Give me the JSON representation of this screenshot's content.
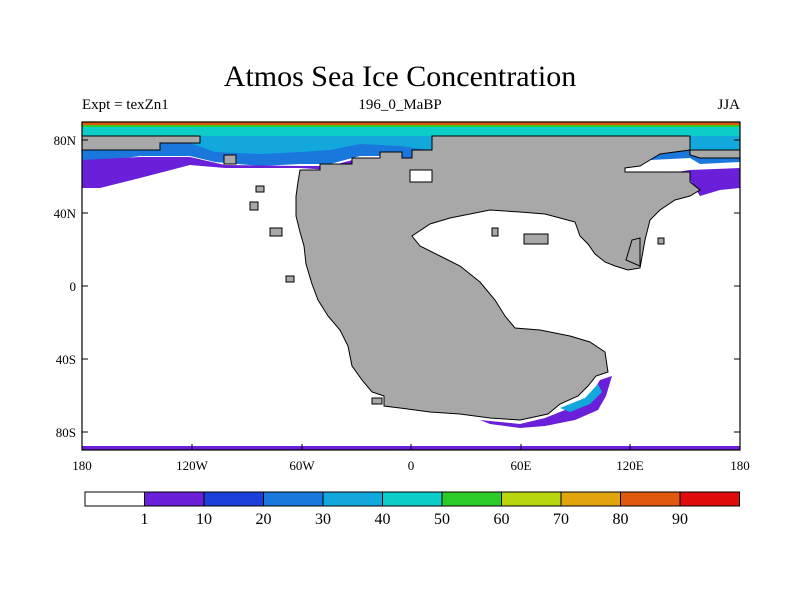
{
  "title": "Atmos Sea Ice Concentration",
  "left_string": "Expt = texZn1",
  "center_string": "196_0_MaBP",
  "right_string": "JJA",
  "lat_labels": [
    "80N",
    "40N",
    "0",
    "40S",
    "80S"
  ],
  "lon_labels": [
    "180",
    "120W",
    "60W",
    "0",
    "60E",
    "120E",
    "180"
  ],
  "colorbar": {
    "labels": [
      "1",
      "10",
      "20",
      "30",
      "40",
      "50",
      "60",
      "70",
      "80",
      "90"
    ],
    "colors": [
      "#ffffff",
      "#6a1fd8",
      "#1c3fdc",
      "#1a78dc",
      "#12a8dc",
      "#0ccdc8",
      "#2ccc28",
      "#b8d40c",
      "#e0a40c",
      "#e0580c",
      "#e00c0c"
    ]
  },
  "colors": {
    "land": "#a8a8a8",
    "ocean": "#ffffff"
  }
}
